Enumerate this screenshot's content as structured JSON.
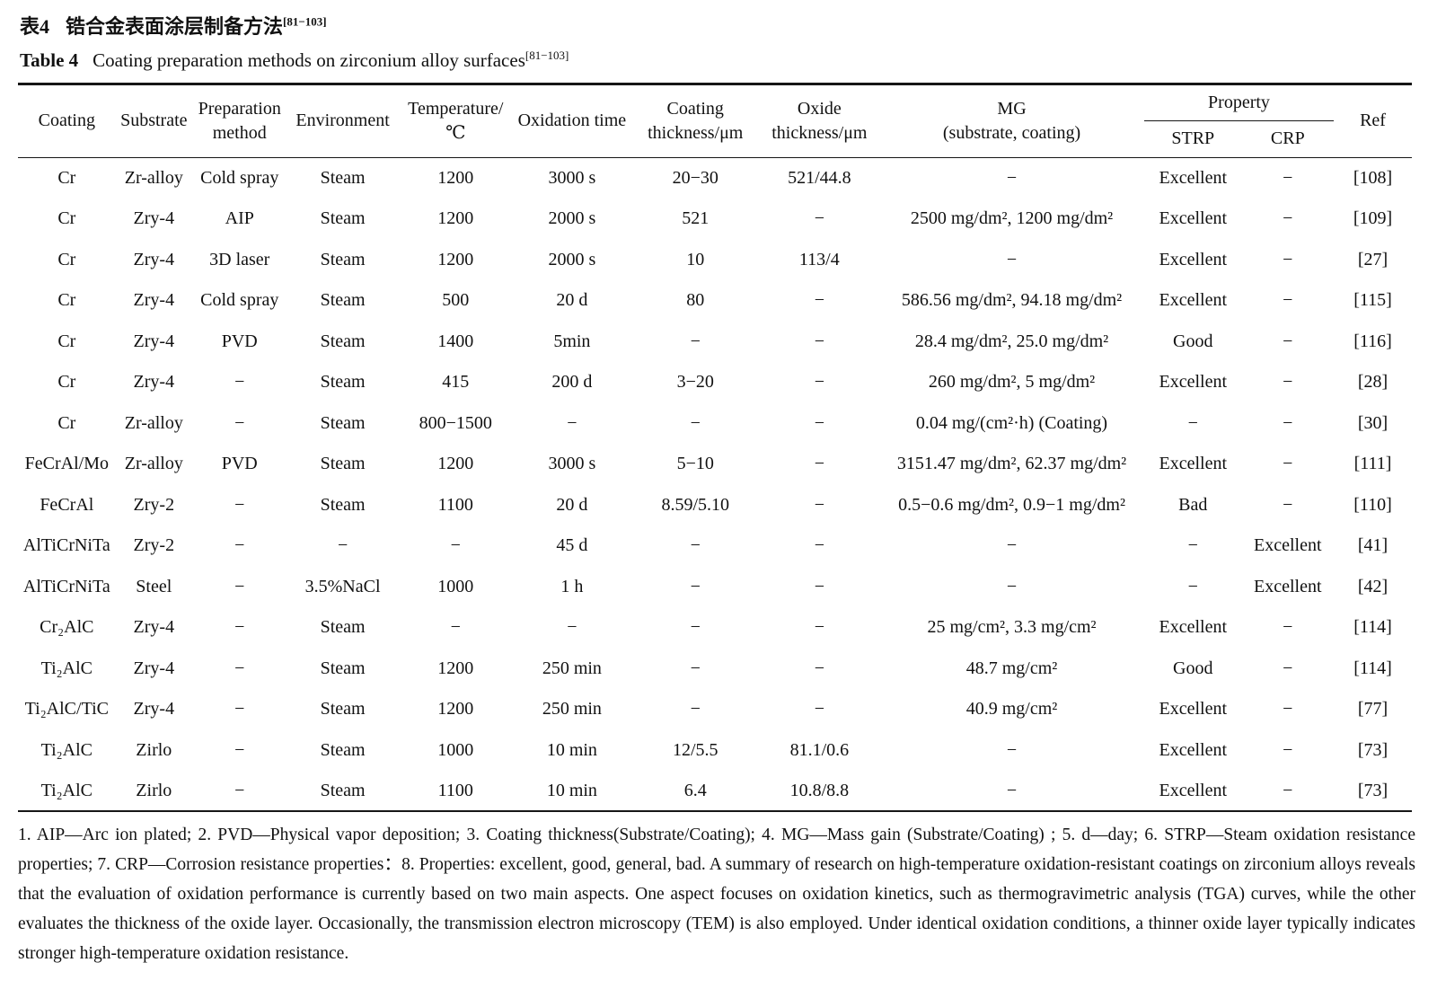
{
  "titles": {
    "zh_label": "表4",
    "zh_text": "锆合金表面涂层制备方法",
    "zh_citation": "[81−103]",
    "en_label": "Table 4",
    "en_text": "Coating preparation methods on zirconium alloy surfaces",
    "en_citation": "[81−103]"
  },
  "table": {
    "headers": {
      "coating": "Coating",
      "substrate": "Substrate",
      "preparation_method": [
        "Preparation",
        "method"
      ],
      "environment": "Environment",
      "temperature": [
        "Temperature/",
        "℃"
      ],
      "oxidation_time": "Oxidation time",
      "coating_thickness": [
        "Coating",
        "thickness/μm"
      ],
      "oxide_thickness": [
        "Oxide",
        "thickness/μm"
      ],
      "mg": [
        "MG",
        "(substrate, coating)"
      ],
      "property": "Property",
      "strp": "STRP",
      "crp": "CRP",
      "ref": "Ref"
    },
    "rows": [
      [
        "Cr",
        "Zr-alloy",
        "Cold spray",
        "Steam",
        "1200",
        "3000 s",
        "20−30",
        "521/44.8",
        "−",
        "Excellent",
        "−",
        "[108]"
      ],
      [
        "Cr",
        "Zry-4",
        "AIP",
        "Steam",
        "1200",
        "2000 s",
        "521",
        "−",
        "2500 mg/dm², 1200 mg/dm²",
        "Excellent",
        "−",
        "[109]"
      ],
      [
        "Cr",
        "Zry-4",
        "3D laser",
        "Steam",
        "1200",
        "2000 s",
        "10",
        "113/4",
        "−",
        "Excellent",
        "−",
        "[27]"
      ],
      [
        "Cr",
        "Zry-4",
        "Cold spray",
        "Steam",
        "500",
        "20 d",
        "80",
        "−",
        "586.56 mg/dm², 94.18 mg/dm²",
        "Excellent",
        "−",
        "[115]"
      ],
      [
        "Cr",
        "Zry-4",
        "PVD",
        "Steam",
        "1400",
        "5min",
        "−",
        "−",
        "28.4 mg/dm², 25.0 mg/dm²",
        "Good",
        "−",
        "[116]"
      ],
      [
        "Cr",
        "Zry-4",
        "−",
        "Steam",
        "415",
        "200 d",
        "3−20",
        "−",
        "260 mg/dm², 5 mg/dm²",
        "Excellent",
        "−",
        "[28]"
      ],
      [
        "Cr",
        "Zr-alloy",
        "−",
        "Steam",
        "800−1500",
        "−",
        "−",
        "−",
        "0.04 mg/(cm²·h) (Coating)",
        "−",
        "−",
        "[30]"
      ],
      [
        "FeCrAl/Mo",
        "Zr-alloy",
        "PVD",
        "Steam",
        "1200",
        "3000 s",
        "5−10",
        "−",
        "3151.47 mg/dm², 62.37 mg/dm²",
        "Excellent",
        "−",
        "[111]"
      ],
      [
        "FeCrAl",
        "Zry-2",
        "−",
        "Steam",
        "1100",
        "20 d",
        "8.59/5.10",
        "−",
        "0.5−0.6 mg/dm², 0.9−1 mg/dm²",
        "Bad",
        "−",
        "[110]"
      ],
      [
        "AlTiCrNiTa",
        "Zry-2",
        "−",
        "−",
        "−",
        "45 d",
        "−",
        "−",
        "−",
        "−",
        "Excellent",
        "[41]"
      ],
      [
        "AlTiCrNiTa",
        "Steel",
        "−",
        "3.5%NaCl",
        "1000",
        "1 h",
        "−",
        "−",
        "−",
        "−",
        "Excellent",
        "[42]"
      ],
      [
        "Cr₂AlC",
        "Zry-4",
        "−",
        "Steam",
        "−",
        "−",
        "−",
        "−",
        "25 mg/cm², 3.3 mg/cm²",
        "Excellent",
        "−",
        "[114]"
      ],
      [
        "Ti₂AlC",
        "Zry-4",
        "−",
        "Steam",
        "1200",
        "250 min",
        "−",
        "−",
        "48.7 mg/cm²",
        "Good",
        "−",
        "[114]"
      ],
      [
        "Ti₂AlC/TiC",
        "Zry-4",
        "−",
        "Steam",
        "1200",
        "250 min",
        "−",
        "−",
        "40.9 mg/cm²",
        "Excellent",
        "−",
        "[77]"
      ],
      [
        "Ti₂AlC",
        "Zirlo",
        "−",
        "Steam",
        "1000",
        "10 min",
        "12/5.5",
        "81.1/0.6",
        "−",
        "Excellent",
        "−",
        "[73]"
      ],
      [
        "Ti₂AlC",
        "Zirlo",
        "−",
        "Steam",
        "1100",
        "10 min",
        "6.4",
        "10.8/8.8",
        "−",
        "Excellent",
        "−",
        "[73]"
      ]
    ]
  },
  "footnote": "1. AIP—Arc ion plated; 2. PVD—Physical vapor deposition; 3. Coating thickness(Substrate/Coating); 4. MG—Mass gain (Substrate/Coating) ; 5. d—day; 6. STRP—Steam oxidation resistance properties; 7. CRP—Corrosion resistance properties：8. Properties: excellent, good, general, bad. A summary of research on high-temperature oxidation-resistant coatings on zirconium alloys reveals that the evaluation of oxidation performance is currently based on two main aspects. One aspect focuses on oxidation kinetics, such as thermogravimetric analysis (TGA) curves, while the other evaluates the thickness of the oxide layer. Occasionally, the transmission electron microscopy (TEM) is also employed. Under identical oxidation conditions, a thinner oxide layer typically indicates stronger high-temperature oxidation resistance."
}
